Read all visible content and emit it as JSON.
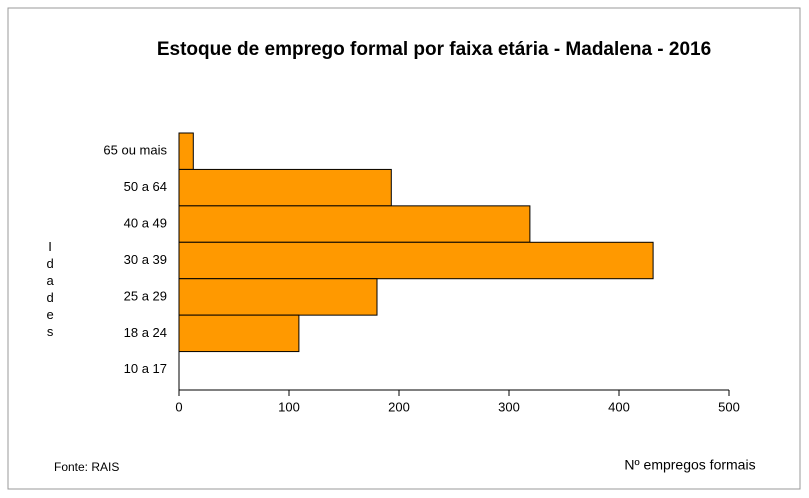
{
  "chart_data": {
    "type": "barh",
    "title": "Estoque  de emprego formal por faixa etária - Madalena - 2016",
    "categories": [
      "65 ou mais",
      "50 a 64",
      "40 a 49",
      "30 a 39",
      "25 a 29",
      "18 a 24",
      "10 a 17"
    ],
    "values": [
      13,
      193,
      319,
      431,
      180,
      109,
      0
    ],
    "color": "#ff9900",
    "xlim": [
      0,
      500
    ],
    "xticks": [
      0,
      100,
      200,
      300,
      400,
      500
    ],
    "ylabel": "Idades",
    "xlabel": "Nº empregos formais",
    "source": "Fonte: RAIS"
  }
}
